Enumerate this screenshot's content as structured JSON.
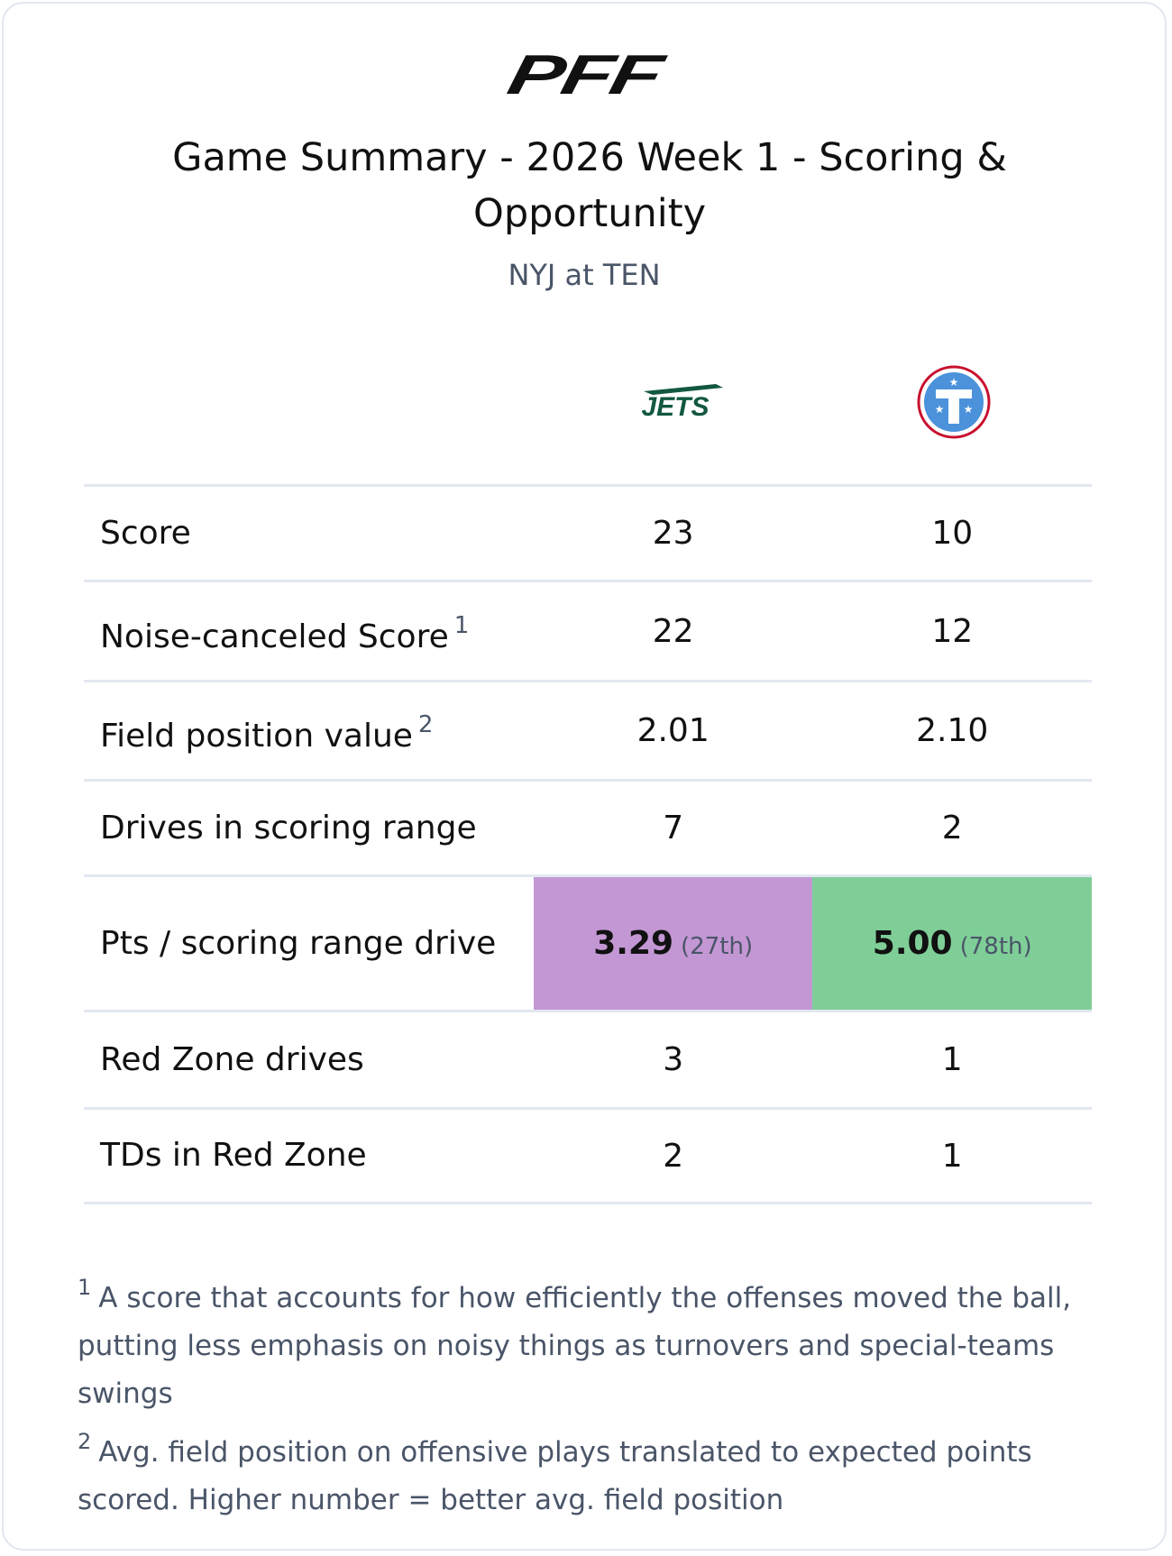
{
  "header": {
    "logo": "PFF",
    "title": "Game Summary - 2026 Week 1 - Scoring & Opportunity",
    "subtitle": "NYJ at TEN"
  },
  "teams": [
    {
      "logo": "JETS"
    },
    {
      "logo": null
    }
  ],
  "table": {
    "rows": [
      {
        "label": "Score",
        "values": [
          "23",
          "10"
        ]
      },
      {
        "label": "Noise-canceled Score",
        "note": "1",
        "values": [
          "22",
          "12"
        ]
      },
      {
        "label": "Field position value",
        "note": "2",
        "values": [
          "2.01",
          "2.10"
        ]
      },
      {
        "label": "Drives in scoring range",
        "values": [
          "7",
          "2"
        ]
      },
      {
        "label": "Pts / scoring range drive",
        "values": [
          "3.29",
          "5.00"
        ],
        "ranks": [
          "(27th)",
          "(78th)"
        ],
        "colors": [
          "#c397d4",
          "#7fce98"
        ]
      },
      {
        "label": "Red Zone drives",
        "values": [
          "3",
          "1"
        ]
      },
      {
        "label": "TDs in Red Zone",
        "values": [
          "2",
          "1"
        ]
      }
    ]
  },
  "footnotes": [
    {
      "marker": "1",
      "text": "A score that accounts for how efficiently the offenses moved the ball, putting less emphasis on noisy things as turnovers and special-teams swings"
    },
    {
      "marker": "2",
      "text": "Avg. field position on offensive plays translated to expected points scored. Higher number = better avg. field position"
    }
  ]
}
